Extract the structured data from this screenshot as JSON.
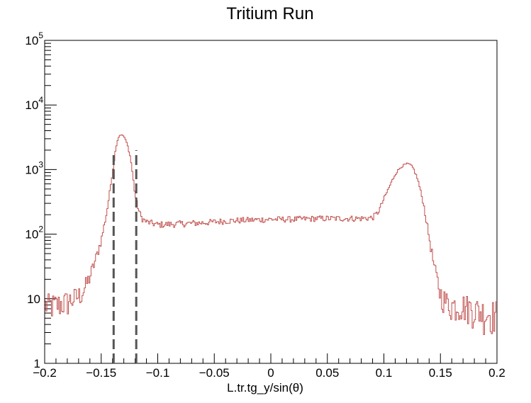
{
  "chart_data": {
    "type": "histogram",
    "title": "Tritium Run",
    "xlabel": "L.tr.tg_y/sin(θ)",
    "ylabel": "",
    "xlim": [
      -0.2,
      0.2
    ],
    "ylim": [
      1,
      100000
    ],
    "yscale": "log",
    "grid": false,
    "x_ticks": [
      "−0.2",
      "−0.15",
      "−0.1",
      "−0.05",
      "0",
      "0.05",
      "0.1",
      "0.15",
      "0.2"
    ],
    "x_tick_values": [
      -0.2,
      -0.15,
      -0.1,
      -0.05,
      0,
      0.05,
      0.1,
      0.15,
      0.2
    ],
    "y_ticks": [
      {
        "value": 1,
        "base": "1",
        "exp": ""
      },
      {
        "value": 10,
        "base": "10",
        "exp": ""
      },
      {
        "value": 100,
        "base": "10",
        "exp": "2"
      },
      {
        "value": 1000,
        "base": "10",
        "exp": "3"
      },
      {
        "value": 10000,
        "base": "10",
        "exp": "4"
      },
      {
        "value": 100000,
        "base": "10",
        "exp": "5"
      }
    ],
    "series": [
      {
        "color": "#c0504d",
        "nbins": 400,
        "profile_x": [
          -0.2,
          -0.19,
          -0.18,
          -0.17,
          -0.165,
          -0.16,
          -0.155,
          -0.15,
          -0.145,
          -0.14,
          -0.137,
          -0.135,
          -0.133,
          -0.13,
          -0.127,
          -0.124,
          -0.122,
          -0.12,
          -0.117,
          -0.114,
          -0.11,
          -0.1,
          -0.08,
          -0.06,
          -0.04,
          -0.02,
          0,
          0.02,
          0.04,
          0.06,
          0.08,
          0.09,
          0.095,
          0.1,
          0.105,
          0.11,
          0.115,
          0.12,
          0.123,
          0.126,
          0.13,
          0.135,
          0.14,
          0.145,
          0.15,
          0.155,
          0.16,
          0.17,
          0.18,
          0.19,
          0.2
        ],
        "profile_y": [
          8,
          8,
          9,
          11,
          14,
          22,
          40,
          80,
          220,
          900,
          2200,
          3100,
          3500,
          3300,
          2500,
          1500,
          800,
          400,
          240,
          175,
          155,
          140,
          145,
          150,
          160,
          165,
          170,
          170,
          175,
          175,
          175,
          180,
          220,
          350,
          550,
          850,
          1100,
          1220,
          1200,
          1050,
          700,
          300,
          90,
          28,
          12,
          9,
          8,
          8,
          7,
          6,
          6
        ]
      }
    ],
    "annotations": [
      {
        "type": "vline",
        "x": -0.139,
        "y_top": 1800,
        "style": "dashed",
        "color": "#555555"
      },
      {
        "type": "vline",
        "x": -0.119,
        "y_top": 2000,
        "style": "dashed",
        "color": "#555555"
      }
    ]
  }
}
